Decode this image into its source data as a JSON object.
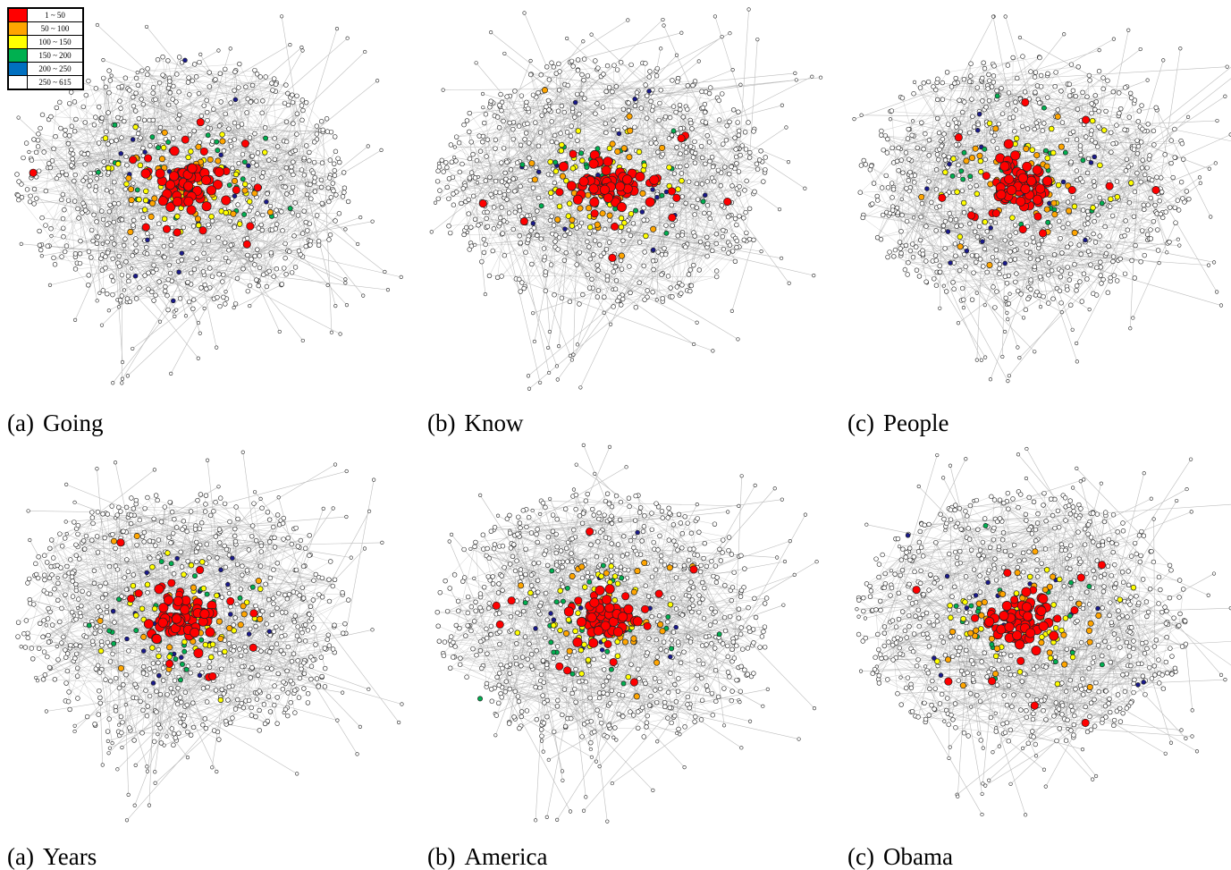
{
  "legend": {
    "items": [
      {
        "label": "1 ~ 50",
        "color": "#ff0000"
      },
      {
        "label": "50 ~ 100",
        "color": "#ffa500"
      },
      {
        "label": "100 ~ 150",
        "color": "#ffff00"
      },
      {
        "label": "150 ~ 200",
        "color": "#00b050"
      },
      {
        "label": "200 ~ 250",
        "color": "#0070c0"
      },
      {
        "label": "250 ~ 615",
        "color": "#ffffff"
      }
    ]
  },
  "panels": [
    {
      "tag": "(a)",
      "word": "Going",
      "seed": 11
    },
    {
      "tag": "(b)",
      "word": "Know",
      "seed": 23
    },
    {
      "tag": "(c)",
      "word": "People",
      "seed": 37
    },
    {
      "tag": "(a)",
      "word": "Years",
      "seed": 41
    },
    {
      "tag": "(b)",
      "word": "America",
      "seed": 53
    },
    {
      "tag": "(c)",
      "word": "Obama",
      "seed": 67
    }
  ],
  "colors": {
    "edge": "#bdbdbd",
    "node_stroke": "#222222",
    "node_fill": "#ffffff",
    "dark_blue": "#1a1a8c"
  }
}
